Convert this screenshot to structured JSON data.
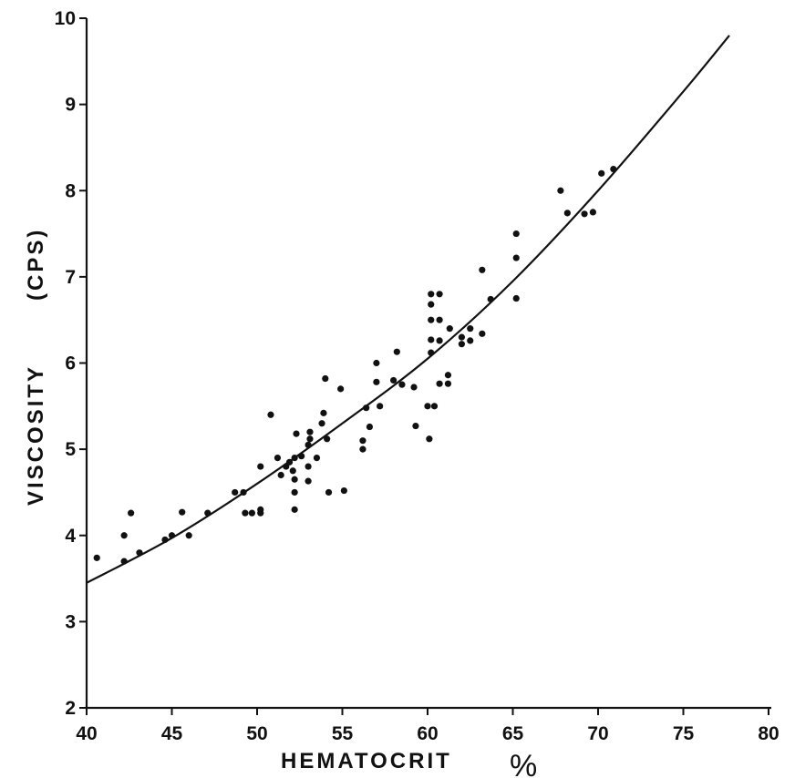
{
  "chart_data": {
    "type": "scatter",
    "xlabel": "HEMATOCRIT",
    "xlabel_unit": "%",
    "ylabel": "VISCOSITY",
    "ylabel_unit": "(CPS)",
    "xlim": [
      40,
      80
    ],
    "ylim": [
      2,
      10
    ],
    "xticks": [
      40,
      45,
      50,
      55,
      60,
      65,
      70,
      75,
      80
    ],
    "yticks": [
      2,
      3,
      4,
      5,
      6,
      7,
      8,
      9,
      10
    ],
    "grid": false,
    "series": [
      {
        "kind": "points",
        "points": [
          [
            40.6,
            3.74
          ],
          [
            42.2,
            3.7
          ],
          [
            42.2,
            4.0
          ],
          [
            42.6,
            4.26
          ],
          [
            43.1,
            3.8
          ],
          [
            44.6,
            3.95
          ],
          [
            45.0,
            4.0
          ],
          [
            45.6,
            4.27
          ],
          [
            46.0,
            4.0
          ],
          [
            47.1,
            4.26
          ],
          [
            48.7,
            4.5
          ],
          [
            49.2,
            4.5
          ],
          [
            49.3,
            4.26
          ],
          [
            49.7,
            4.26
          ],
          [
            50.2,
            4.3
          ],
          [
            50.2,
            4.26
          ],
          [
            50.2,
            4.8
          ],
          [
            50.8,
            5.4
          ],
          [
            51.2,
            4.9
          ],
          [
            51.4,
            4.7
          ],
          [
            51.7,
            4.8
          ],
          [
            51.9,
            4.85
          ],
          [
            52.1,
            4.75
          ],
          [
            52.2,
            4.9
          ],
          [
            52.2,
            4.65
          ],
          [
            52.2,
            4.5
          ],
          [
            52.2,
            4.3
          ],
          [
            52.3,
            5.18
          ],
          [
            52.6,
            4.92
          ],
          [
            53.0,
            5.05
          ],
          [
            53.0,
            4.8
          ],
          [
            53.0,
            4.63
          ],
          [
            53.1,
            5.2
          ],
          [
            53.1,
            5.12
          ],
          [
            53.5,
            4.9
          ],
          [
            53.8,
            5.3
          ],
          [
            53.9,
            5.42
          ],
          [
            54.0,
            5.82
          ],
          [
            54.1,
            5.12
          ],
          [
            54.2,
            4.5
          ],
          [
            54.9,
            5.7
          ],
          [
            55.1,
            4.52
          ],
          [
            56.2,
            5.1
          ],
          [
            56.2,
            5.0
          ],
          [
            56.4,
            5.48
          ],
          [
            56.6,
            5.26
          ],
          [
            57.0,
            6.0
          ],
          [
            57.0,
            5.78
          ],
          [
            57.2,
            5.5
          ],
          [
            58.0,
            5.8
          ],
          [
            58.2,
            6.13
          ],
          [
            58.5,
            5.75
          ],
          [
            59.2,
            5.72
          ],
          [
            59.3,
            5.27
          ],
          [
            60.0,
            5.5
          ],
          [
            60.1,
            5.12
          ],
          [
            60.2,
            6.8
          ],
          [
            60.2,
            6.68
          ],
          [
            60.2,
            6.5
          ],
          [
            60.2,
            6.27
          ],
          [
            60.2,
            6.12
          ],
          [
            60.4,
            5.5
          ],
          [
            60.7,
            6.8
          ],
          [
            60.7,
            6.5
          ],
          [
            60.7,
            6.26
          ],
          [
            60.7,
            5.76
          ],
          [
            61.2,
            5.86
          ],
          [
            61.2,
            5.76
          ],
          [
            61.3,
            6.4
          ],
          [
            62.0,
            6.3
          ],
          [
            62.0,
            6.22
          ],
          [
            62.5,
            6.4
          ],
          [
            62.5,
            6.26
          ],
          [
            63.2,
            7.08
          ],
          [
            63.2,
            6.34
          ],
          [
            63.7,
            6.74
          ],
          [
            65.2,
            7.5
          ],
          [
            65.2,
            7.22
          ],
          [
            65.2,
            6.75
          ],
          [
            67.8,
            8.0
          ],
          [
            68.2,
            7.74
          ],
          [
            69.2,
            7.73
          ],
          [
            69.7,
            7.75
          ],
          [
            70.2,
            8.2
          ],
          [
            70.9,
            8.25
          ]
        ]
      },
      {
        "kind": "fitted-curve",
        "points": [
          [
            40,
            3.45
          ],
          [
            45,
            3.97
          ],
          [
            50,
            4.6
          ],
          [
            55,
            5.3
          ],
          [
            60,
            6.05
          ],
          [
            65,
            6.95
          ],
          [
            70,
            8.0
          ],
          [
            75,
            9.15
          ],
          [
            77.7,
            9.8
          ]
        ]
      }
    ]
  }
}
